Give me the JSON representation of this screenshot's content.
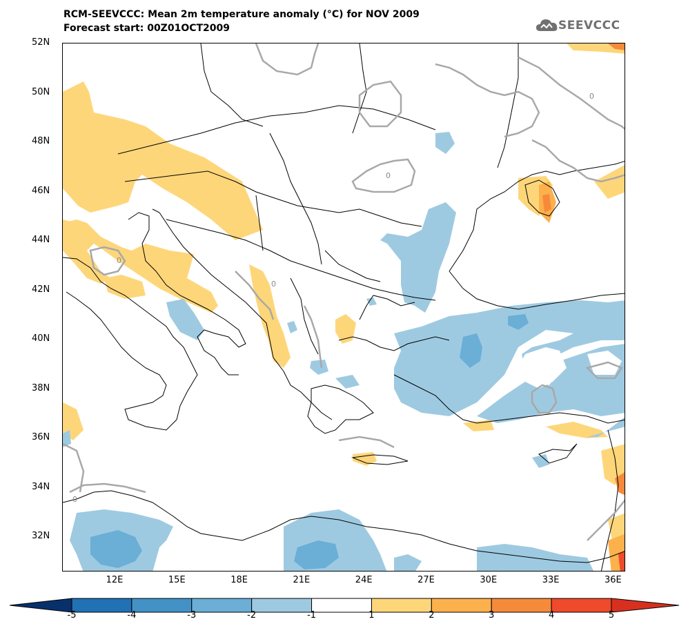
{
  "header": {
    "title_line1": "RCM-SEEVCCC: Mean 2m temperature anomaly (°C) for NOV 2009",
    "title_line2": "Forecast start: 00Z01OCT2009"
  },
  "logo": {
    "text": "SEEVCCC",
    "icon": "cloud-icon"
  },
  "map": {
    "y_axis_labels": [
      "52N",
      "50N",
      "48N",
      "46N",
      "44N",
      "42N",
      "40N",
      "38N",
      "36N",
      "34N",
      "32N"
    ],
    "x_axis_labels": [
      "12E",
      "15E",
      "18E",
      "21E",
      "24E",
      "27E",
      "30E",
      "33E",
      "36E"
    ],
    "contour_label": "0",
    "colors": {
      "warm_1_2": "#fed67a",
      "warm_2_3": "#fcb14c",
      "warm_3_4": "#f68a3b",
      "warm_4_5": "#ee4a2b",
      "cool_1_2": "#9ecae1",
      "cool_2_3": "#6baed6",
      "cool_3_4": "#4292c6",
      "cool_4_5": "#2171b5",
      "zero_contour": "#a8a8a8",
      "coastline": "#000000"
    }
  },
  "colorbar": {
    "labels": [
      "-5",
      "-4",
      "-3",
      "-2",
      "-1",
      "1",
      "2",
      "3",
      "4",
      "5"
    ],
    "colors": [
      "#08306b",
      "#2171b5",
      "#4292c6",
      "#6baed6",
      "#9ecae1",
      "#ffffff",
      "#fed67a",
      "#fcb14c",
      "#f68a3b",
      "#ee4a2b",
      "#d7301f"
    ]
  }
}
